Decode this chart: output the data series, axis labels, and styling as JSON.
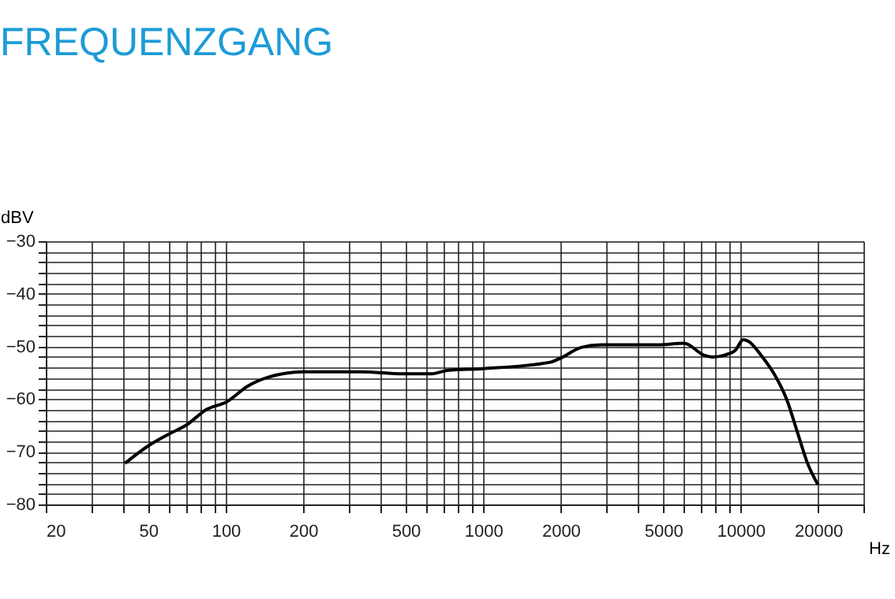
{
  "chart_data": {
    "type": "line",
    "title": "FREQUENZGANG",
    "xlabel": "Hz",
    "ylabel": "dBV",
    "log": "x",
    "grid": true,
    "marker": "none",
    "line_style": "solid",
    "x": [
      40.6,
      49.6,
      61,
      70,
      84,
      101,
      122,
      147,
      200,
      335,
      486,
      631,
      733,
      1000,
      1820,
      2000,
      2400,
      2880,
      4790,
      6030,
      7240,
      7760,
      8710,
      9550,
      10230,
      10720,
      12020,
      13490,
      15140,
      16600,
      18200,
      19950
    ],
    "series": [
      {
        "color": "#000000",
        "values": [
          -72.2,
          -69,
          -66.5,
          -65,
          -62,
          -60.5,
          -57.5,
          -55.8,
          -54.8,
          -54.8,
          -55.2,
          -55.2,
          -54.5,
          -54.2,
          -53,
          -52.2,
          -50.2,
          -49.7,
          -49.7,
          -49.4,
          -51.7,
          -52,
          -51.6,
          -50.7,
          -48.7,
          -49,
          -51.7,
          -55.2,
          -60.2,
          -66.2,
          -72.2,
          -76.2
        ]
      }
    ],
    "xlim": [
      20,
      30000
    ],
    "ylim": [
      -80,
      -30
    ],
    "xticks": [
      20,
      {
        "value": 30,
        "label": null
      },
      {
        "value": 40,
        "label": null
      },
      50,
      {
        "value": 60,
        "label": null
      },
      {
        "value": 70,
        "label": null
      },
      {
        "value": 80,
        "label": null
      },
      {
        "value": 90,
        "label": null
      },
      100,
      200,
      {
        "value": 300,
        "label": null
      },
      {
        "value": 400,
        "label": null
      },
      500,
      {
        "value": 600,
        "label": null
      },
      {
        "value": 700,
        "label": null
      },
      {
        "value": 800,
        "label": null
      },
      {
        "value": 900,
        "label": null
      },
      1000,
      2000,
      {
        "value": 3000,
        "label": null
      },
      {
        "value": 4000,
        "label": null
      },
      5000,
      {
        "value": 6000,
        "label": null
      },
      {
        "value": 7000,
        "label": null
      },
      {
        "value": 8000,
        "label": null
      },
      {
        "value": 9000,
        "label": null
      },
      10000,
      20000,
      {
        "value": 30000,
        "label": null
      }
    ],
    "yticks": [
      -80,
      {
        "value": -78,
        "label": null
      },
      {
        "value": -76,
        "label": null
      },
      {
        "value": -74,
        "label": null
      },
      {
        "value": -72,
        "label": null
      },
      -70,
      {
        "value": -68,
        "label": null
      },
      {
        "value": -66,
        "label": null
      },
      {
        "value": -64,
        "label": null
      },
      {
        "value": -62,
        "label": null
      },
      -60,
      {
        "value": -58,
        "label": null
      },
      {
        "value": -56,
        "label": null
      },
      {
        "value": -54,
        "label": null
      },
      {
        "value": -52,
        "label": null
      },
      -50,
      {
        "value": -48,
        "label": null
      },
      {
        "value": -46,
        "label": null
      },
      {
        "value": -44,
        "label": null
      },
      {
        "value": -42,
        "label": null
      },
      -40,
      {
        "value": -38,
        "label": null
      },
      {
        "value": -36,
        "label": null
      },
      {
        "value": -34,
        "label": null
      },
      {
        "value": -32,
        "label": null
      },
      -30
    ]
  }
}
